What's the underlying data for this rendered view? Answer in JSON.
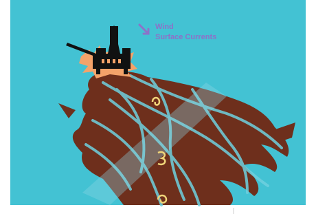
{
  "legend": {
    "items": [
      "Wind",
      "Surface Currents"
    ]
  }
}
